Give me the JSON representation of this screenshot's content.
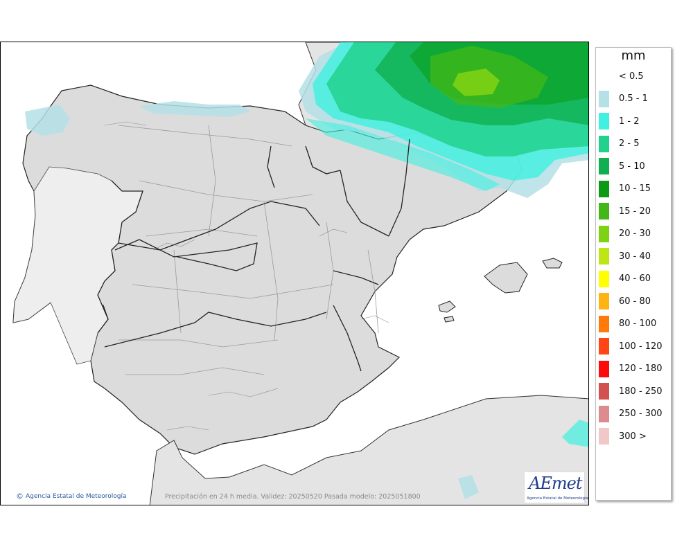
{
  "legend": {
    "unit": "mm",
    "items": [
      {
        "label": "< 0.5",
        "color": "#ffffff"
      },
      {
        "label": "0.5 - 1",
        "color": "#b4e0e6"
      },
      {
        "label": "1 - 2",
        "color": "#40f0e0"
      },
      {
        "label": "2 - 5",
        "color": "#22d18c"
      },
      {
        "label": "5 - 10",
        "color": "#10b050"
      },
      {
        "label": "10 - 15",
        "color": "#0a9a14"
      },
      {
        "label": "15 - 20",
        "color": "#42b818"
      },
      {
        "label": "20 - 30",
        "color": "#7ed214"
      },
      {
        "label": "30 - 40",
        "color": "#bee614"
      },
      {
        "label": "40 - 60",
        "color": "#ffff00"
      },
      {
        "label": "60 - 80",
        "color": "#ffb414"
      },
      {
        "label": "80 - 100",
        "color": "#ff7a0a"
      },
      {
        "label": "100 - 120",
        "color": "#ff4614"
      },
      {
        "label": "120 - 180",
        "color": "#ff0a0a"
      },
      {
        "label": "180 - 250",
        "color": "#d25050"
      },
      {
        "label": "250 - 300",
        "color": "#dc8c8c"
      },
      {
        "label": "300 >",
        "color": "#f0c8c8"
      }
    ]
  },
  "map": {
    "caption": "Precipitación en 24 h media. Validez: 20250520 Pasada modelo: 2025051800",
    "credit": "Agencia Estatal de Meteorología",
    "copyright_symbol": "©",
    "logo_text": "AEmet",
    "logo_subtext": "Agencia Estatal de Meteorología",
    "colors": {
      "land": "#dcdcdc",
      "sea": "#ffffff",
      "border": "#222222",
      "province_line": "#9a9a9a"
    }
  }
}
